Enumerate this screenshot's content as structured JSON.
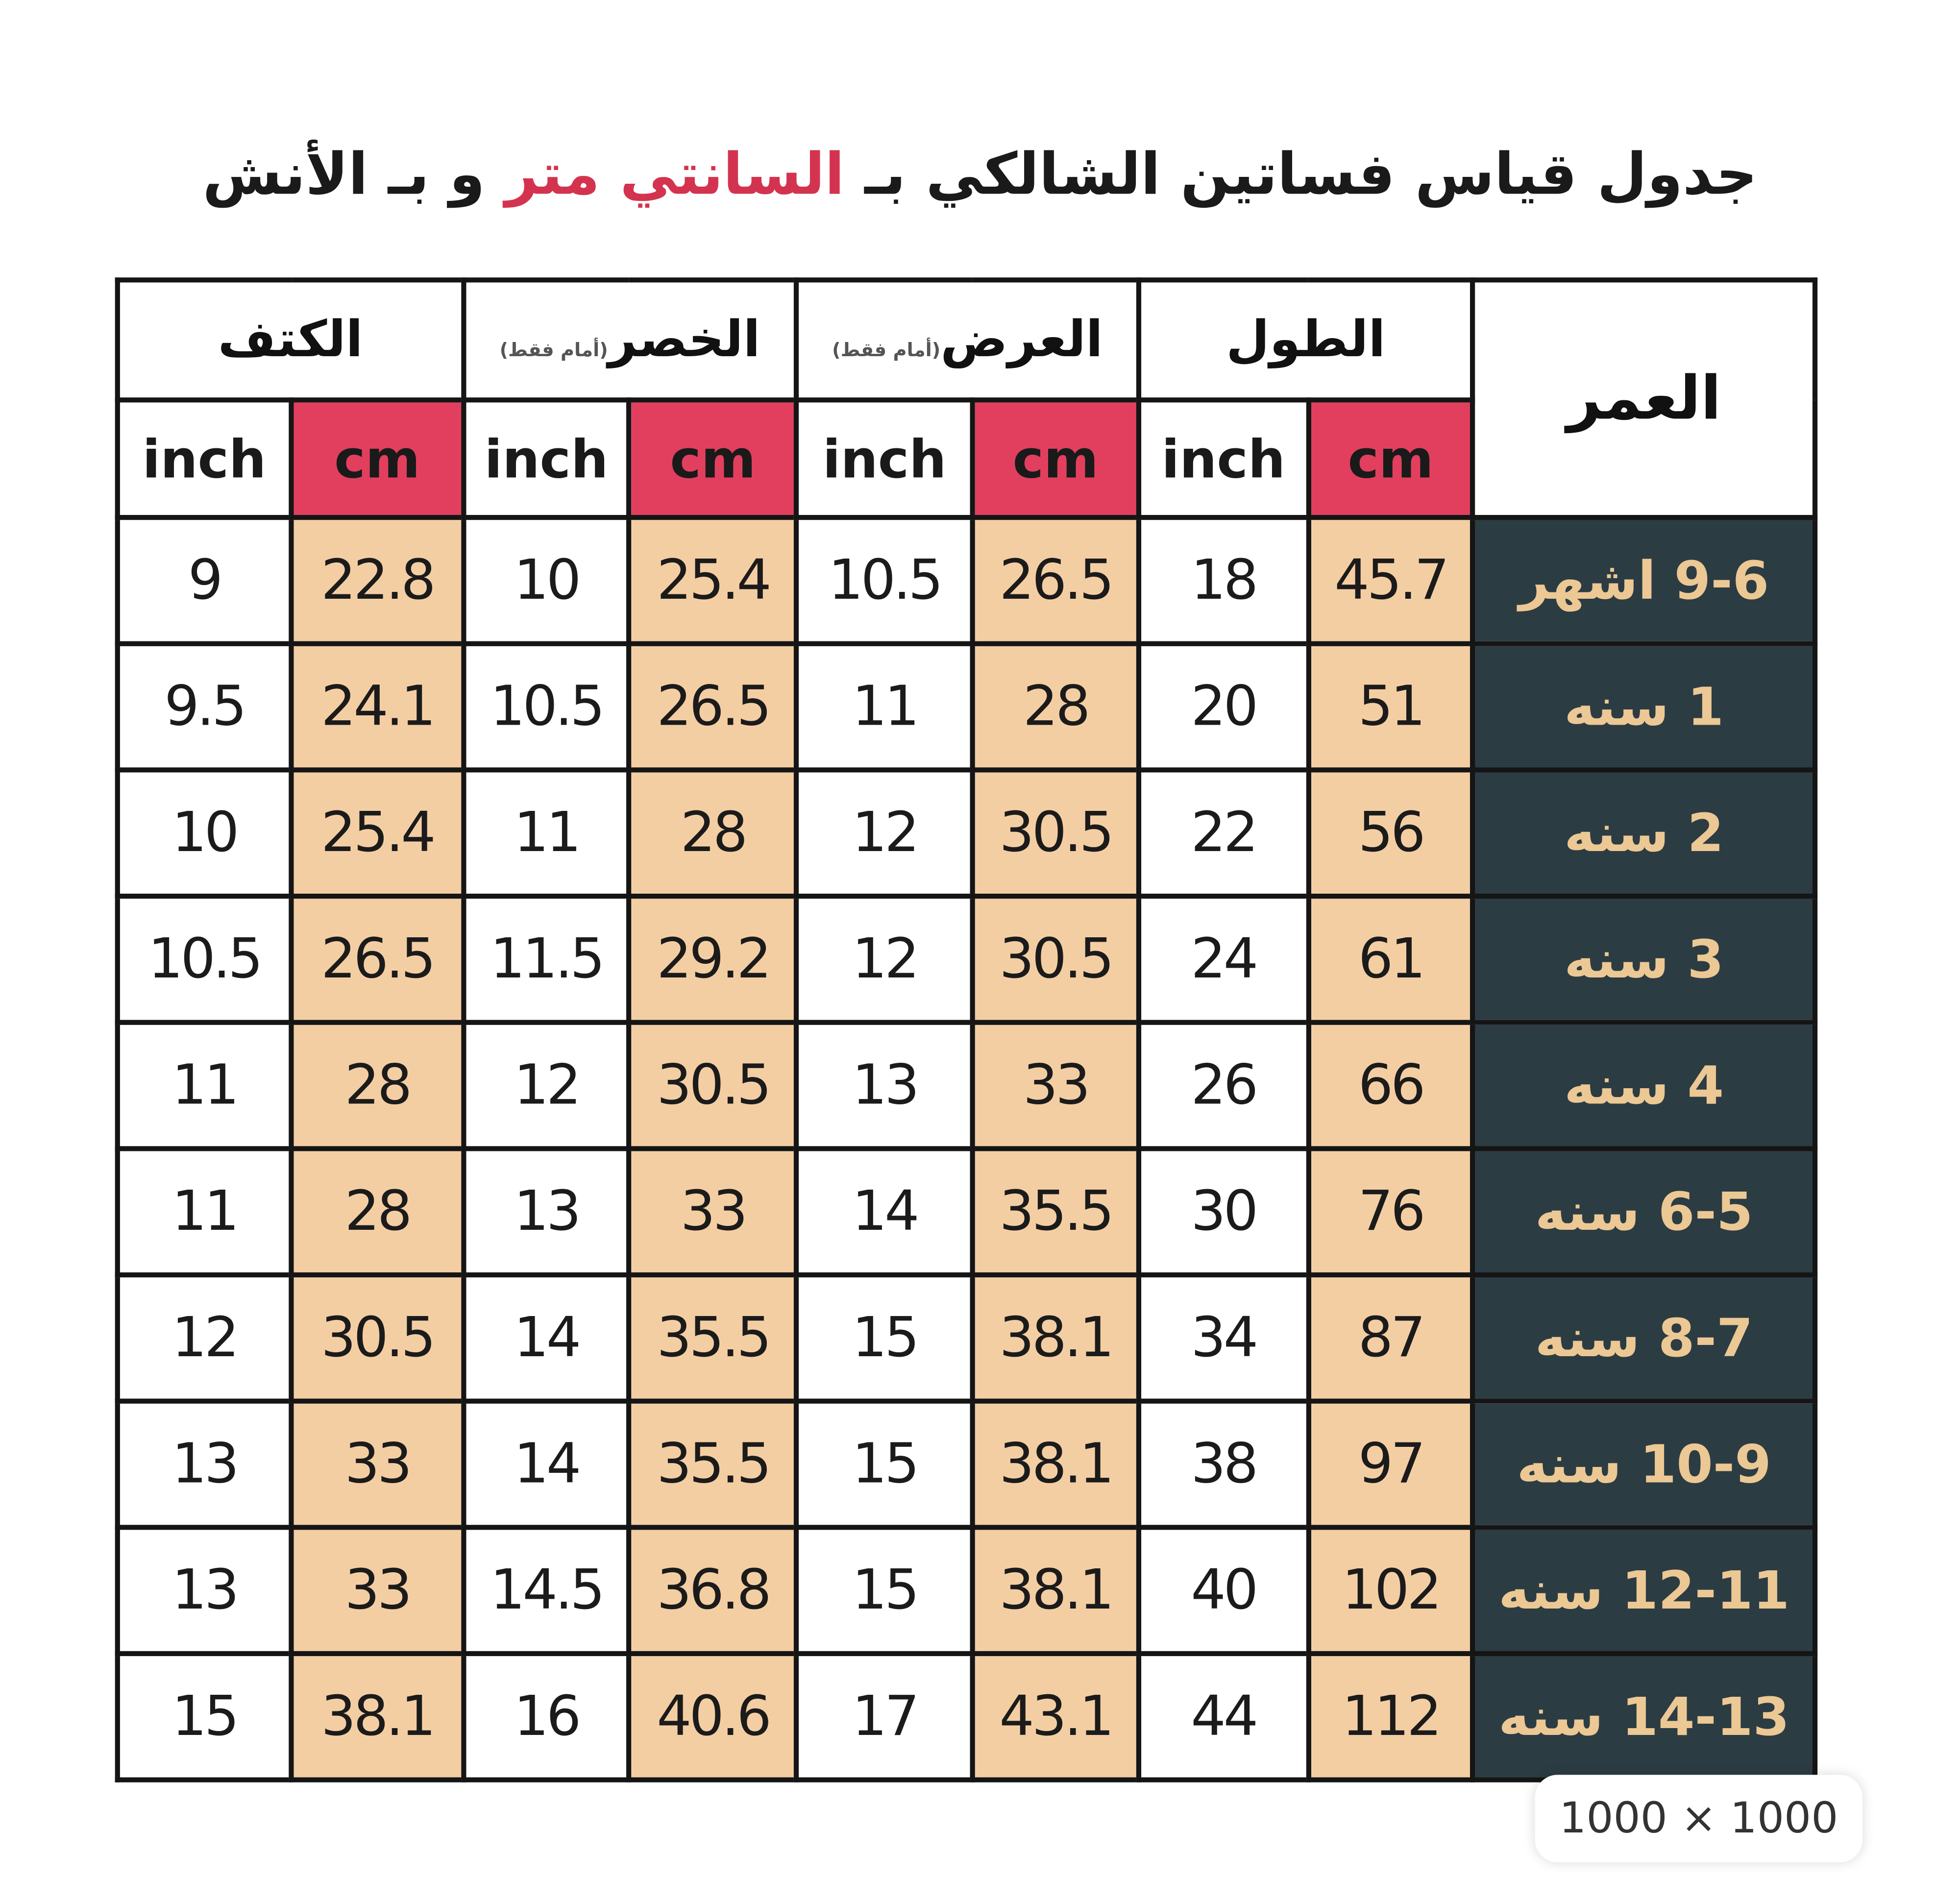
{
  "title": {
    "before": "جدول قياس فساتين الشالكي بـ",
    "highlight": "السانتي متر",
    "after": "و بـ الأنش"
  },
  "table": {
    "age_header": "العمر",
    "groups": [
      {
        "label": "الطول"
      },
      {
        "label": "العرض",
        "note": "(أمام فقط)"
      },
      {
        "label": "الخصر",
        "note": "(أمام فقط)"
      },
      {
        "label": "الكتف"
      }
    ],
    "units": [
      "cm",
      "inch",
      "cm",
      "inch",
      "cm",
      "inch",
      "cm",
      "inch"
    ],
    "rows": [
      {
        "age": "9-6 اشهر",
        "values": [
          45.7,
          18,
          26.5,
          10.5,
          25.4,
          10,
          22.8,
          9
        ]
      },
      {
        "age": "1 سنه",
        "values": [
          51,
          20,
          28,
          11,
          26.5,
          10.5,
          24.1,
          9.5
        ]
      },
      {
        "age": "2 سنه",
        "values": [
          56,
          22,
          30.5,
          12,
          28,
          11,
          25.4,
          10
        ]
      },
      {
        "age": "3 سنه",
        "values": [
          61,
          24,
          30.5,
          12,
          29.2,
          11.5,
          26.5,
          10.5
        ]
      },
      {
        "age": "4 سنه",
        "values": [
          66,
          26,
          33,
          13,
          30.5,
          12,
          28,
          11
        ]
      },
      {
        "age": "6-5 سنه",
        "values": [
          76,
          30,
          35.5,
          14,
          33,
          13,
          28,
          11
        ]
      },
      {
        "age": "8-7 سنه",
        "values": [
          87,
          34,
          38.1,
          15,
          35.5,
          14,
          30.5,
          12
        ]
      },
      {
        "age": "10-9 سنه",
        "values": [
          97,
          38,
          38.1,
          15,
          35.5,
          14,
          33,
          13
        ]
      },
      {
        "age": "12-11 سنه",
        "values": [
          102,
          40,
          38.1,
          15,
          36.8,
          14.5,
          33,
          13
        ]
      },
      {
        "age": "14-13 سنه",
        "values": [
          112,
          44,
          43.1,
          17,
          40.6,
          16,
          38.1,
          15
        ]
      }
    ]
  },
  "badge": "1000 × 1000"
}
